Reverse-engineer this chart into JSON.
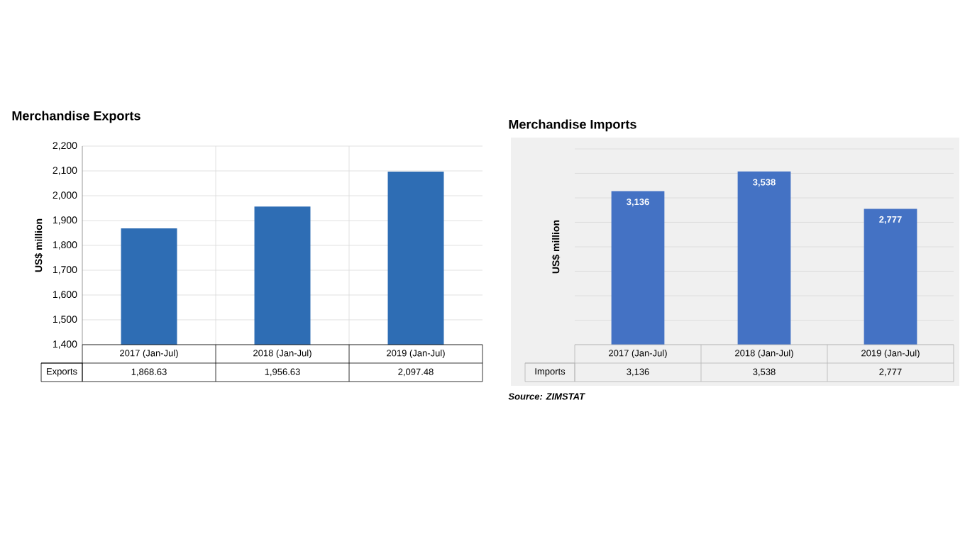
{
  "chart_data": [
    {
      "type": "bar",
      "title": "Merchandise Exports",
      "ylabel": "US$ million",
      "categories": [
        "2017 (Jan-Jul)",
        "2018 (Jan-Jul)",
        "2019 (Jan-Jul)"
      ],
      "series": [
        {
          "name": "Exports",
          "color": "#2e6db4",
          "values": [
            1868.63,
            1956.63,
            2097.48
          ],
          "value_labels": [
            "1,868.63",
            "1,956.63",
            "2,097.48"
          ]
        }
      ],
      "ylim": [
        1400,
        2200
      ],
      "yticks": [
        {
          "value": 1400,
          "label": "1,400"
        },
        {
          "value": 1500,
          "label": "1,500"
        },
        {
          "value": 1600,
          "label": "1,600"
        },
        {
          "value": 1700,
          "label": "1,700"
        },
        {
          "value": 1800,
          "label": "1,800"
        },
        {
          "value": 1900,
          "label": "1,900"
        },
        {
          "value": 2000,
          "label": "2,000"
        },
        {
          "value": 2100,
          "label": "2,100"
        },
        {
          "value": 2200,
          "label": "2,200"
        }
      ],
      "grid": true
    },
    {
      "type": "bar",
      "title": "Merchandise Imports",
      "ylabel": "US$ million",
      "categories": [
        "2017 (Jan-Jul)",
        "2018 (Jan-Jul)",
        "2019 (Jan-Jul)"
      ],
      "series": [
        {
          "name": "Imports",
          "color": "#4472c4",
          "values": [
            3136,
            3538,
            2777
          ],
          "value_labels": [
            "3,136",
            "3,538",
            "2,777"
          ]
        }
      ],
      "ylim": [
        0,
        4000
      ],
      "yticks": [
        {
          "value": 0,
          "label": null
        },
        {
          "value": 500,
          "label": null
        },
        {
          "value": 1000,
          "label": null
        },
        {
          "value": 1500,
          "label": null
        },
        {
          "value": 2000,
          "label": null
        },
        {
          "value": 2500,
          "label": null
        },
        {
          "value": 3000,
          "label": null
        },
        {
          "value": 3500,
          "label": null
        },
        {
          "value": 4000,
          "label": null
        }
      ],
      "grid": "y",
      "tick_labels": "x",
      "annotations": [
        "Source: ZIMSTAT"
      ]
    }
  ]
}
